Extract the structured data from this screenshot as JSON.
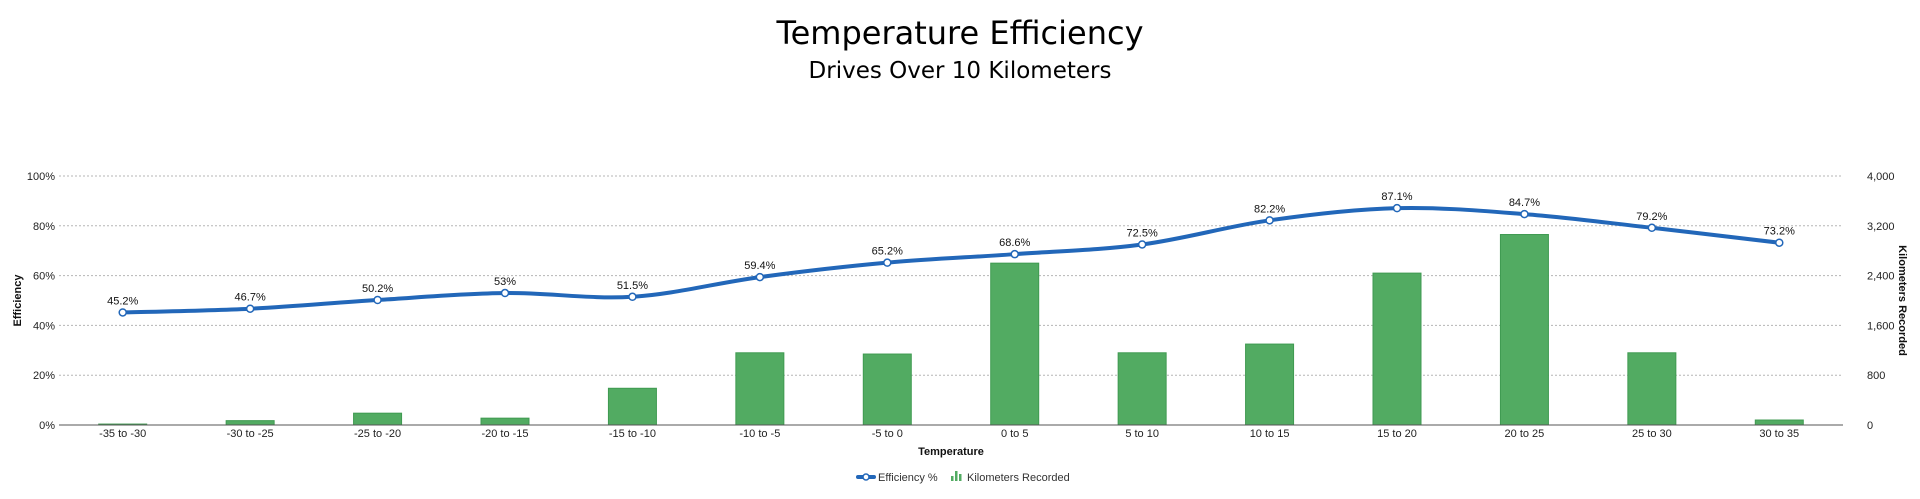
{
  "chart_data": {
    "type": "bar+line",
    "title": "Temperature Efficiency",
    "subtitle": "Drives Over 10 Kilometers",
    "xlabel": "Temperature",
    "ylabel_left": "Efficiency",
    "ylabel_right": "Kilometers Recorded",
    "categories": [
      "-35 to -30",
      "-30 to -25",
      "-25 to -20",
      "-20 to -15",
      "-15 to -10",
      "-10 to -5",
      "-5 to 0",
      "0 to 5",
      "5 to 10",
      "10 to 15",
      "15 to 20",
      "20 to 25",
      "25 to 30",
      "30 to 35"
    ],
    "y_left": {
      "min": 0,
      "max": 100,
      "ticks": [
        "0%",
        "20%",
        "40%",
        "60%",
        "80%",
        "100%"
      ]
    },
    "y_right": {
      "min": 0,
      "max": 4000,
      "ticks": [
        "0",
        "800",
        "1,600",
        "2,400",
        "3,200",
        "4,000"
      ]
    },
    "grid": true,
    "legend_position": "bottom-center",
    "series": [
      {
        "name": "Efficiency %",
        "type": "line",
        "axis": "left",
        "color": "#2267b9",
        "values": [
          45.2,
          46.7,
          50.2,
          53,
          51.5,
          59.4,
          65.2,
          68.6,
          72.5,
          82.2,
          87.1,
          84.7,
          79.2,
          73.2
        ],
        "labels": [
          "45.2%",
          "46.7%",
          "50.2%",
          "53%",
          "51.5%",
          "59.4%",
          "65.2%",
          "68.6%",
          "72.5%",
          "82.2%",
          "87.1%",
          "84.7%",
          "79.2%",
          "73.2%"
        ]
      },
      {
        "name": "Kilometers Recorded",
        "type": "bar",
        "axis": "right",
        "color": "#52ab62",
        "values": [
          15,
          70,
          190,
          110,
          590,
          1160,
          1140,
          2600,
          1160,
          1300,
          2440,
          3060,
          1160,
          80
        ]
      }
    ]
  }
}
